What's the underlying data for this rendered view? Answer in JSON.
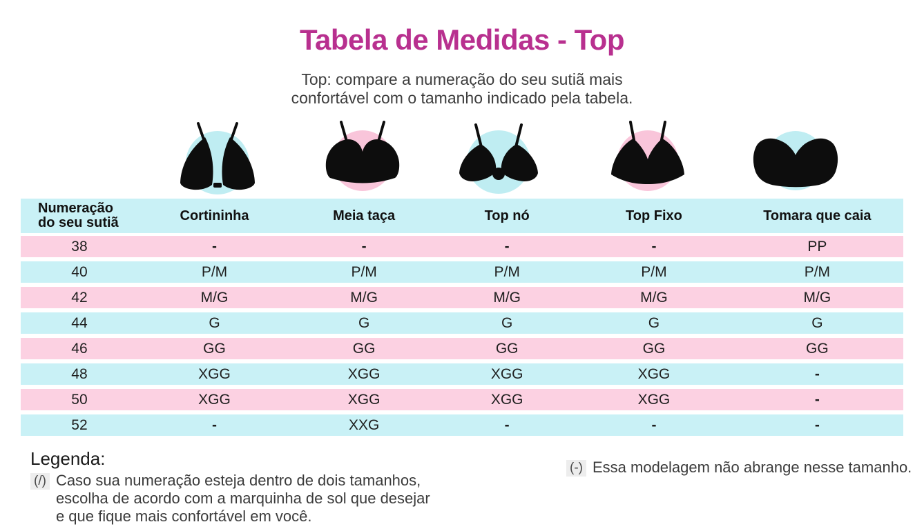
{
  "title": "Tabela de Medidas - Top",
  "subtitle": {
    "line1": "Top: compare a numeração do seu sutiã mais",
    "line2": "confortável com o tamanho indicado pela tabela."
  },
  "colors": {
    "title_accent": "#B8308F",
    "row_cyan": "#C9F1F6",
    "row_pink": "#FCD1E2",
    "circle_cyan": "#BFEDF2",
    "circle_pink": "#F9C5DA",
    "garment_black": "#0d0d0d",
    "legend_marker_bg": "#ededed"
  },
  "figures": [
    {
      "style": "Cortininha",
      "circle_color": "cyan"
    },
    {
      "style": "Meia taça",
      "circle_color": "pink"
    },
    {
      "style": "Top nó",
      "circle_color": "cyan"
    },
    {
      "style": "Top Fixo",
      "circle_color": "pink"
    },
    {
      "style": "Tomara que caia",
      "circle_color": "cyan"
    }
  ],
  "table": {
    "corner": {
      "line1": "Numeração",
      "line2": "do seu sutiã"
    },
    "columns": [
      "Cortininha",
      "Meia taça",
      "Top nó",
      "Top Fixo",
      "Tomara que caia"
    ],
    "rows": [
      {
        "size": "38",
        "values": [
          "-",
          "-",
          "-",
          "-",
          "PP"
        ]
      },
      {
        "size": "40",
        "values": [
          "P/M",
          "P/M",
          "P/M",
          "P/M",
          "P/M"
        ]
      },
      {
        "size": "42",
        "values": [
          "M/G",
          "M/G",
          "M/G",
          "M/G",
          "M/G"
        ]
      },
      {
        "size": "44",
        "values": [
          "G",
          "G",
          "G",
          "G",
          "G"
        ]
      },
      {
        "size": "46",
        "values": [
          "GG",
          "GG",
          "GG",
          "GG",
          "GG"
        ]
      },
      {
        "size": "48",
        "values": [
          "XGG",
          "XGG",
          "XGG",
          "XGG",
          "-"
        ]
      },
      {
        "size": "50",
        "values": [
          "XGG",
          "XGG",
          "XGG",
          "XGG",
          "-"
        ]
      },
      {
        "size": "52",
        "values": [
          "-",
          "XXG",
          "-",
          "-",
          "-"
        ]
      }
    ]
  },
  "legend": {
    "heading": "Legenda:",
    "slash": {
      "marker": "(/)",
      "lines": [
        "Caso sua numeração esteja dentro de dois tamanhos,",
        "escolha de acordo com a marquinha de sol que desejar",
        "e que fique mais confortável em você."
      ]
    },
    "dash": {
      "marker": "(-)",
      "text": "Essa modelagem não abrange nesse tamanho."
    }
  }
}
